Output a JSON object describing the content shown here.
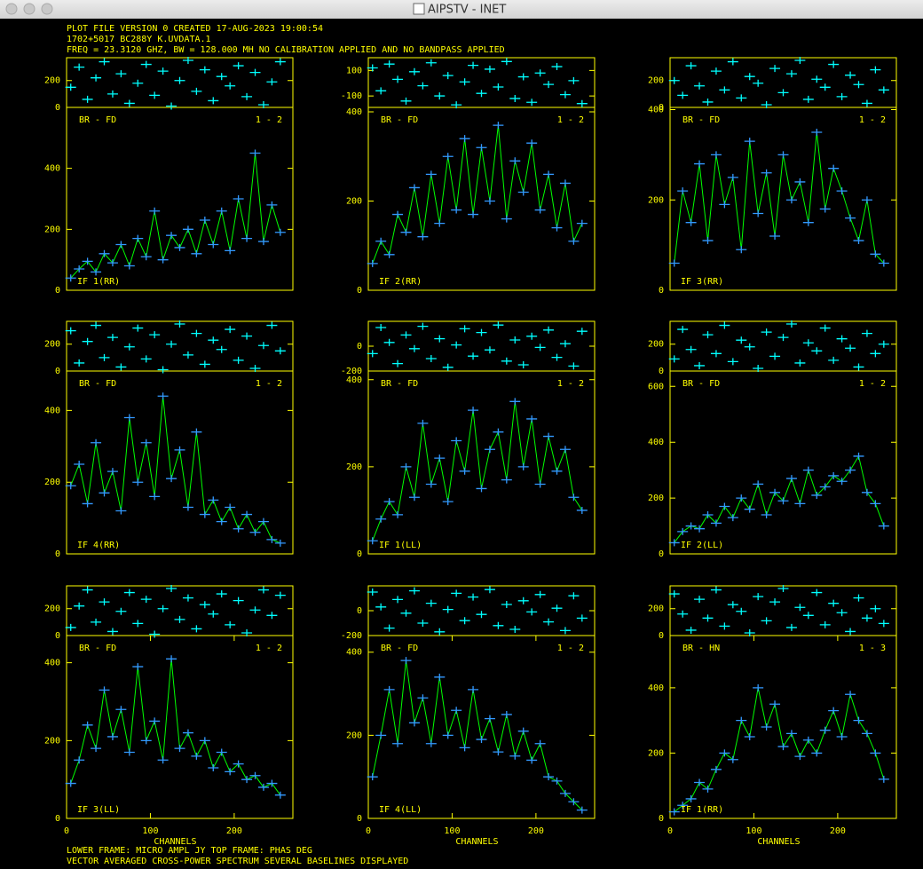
{
  "window": {
    "title": "AIPSTV - INET"
  },
  "header": [
    "PLOT FILE VERSION 0  CREATED 17-AUG-2023 19:00:54",
    "1702+5017   BC288Y K.UVDATA.1",
    "FREQ = 23.3120 GHZ, BW = 128.000 MH   NO CALIBRATION APPLIED AND NO BANDPASS APPLIED"
  ],
  "footer": [
    "LOWER FRAME: MICRO AMPL JY   TOP FRAME: PHAS DEG",
    "VECTOR AVERAGED CROSS-POWER SPECTRUM    SEVERAL BASELINES DISPLAYED"
  ],
  "chart_data": [
    {
      "type": "line",
      "annotations": [
        "BR - FD",
        "1 - 2",
        "IF 1(RR)"
      ],
      "x": [
        5,
        15,
        25,
        35,
        45,
        55,
        65,
        75,
        85,
        95,
        105,
        115,
        125,
        135,
        145,
        155,
        165,
        175,
        185,
        195,
        205,
        215,
        225,
        235,
        245,
        255
      ],
      "xlim": [
        0,
        270
      ],
      "phase": {
        "color": "#00ffff",
        "ylim": [
          0,
          370
        ],
        "yticks": [
          0,
          200
        ],
        "values": [
          150,
          300,
          60,
          220,
          340,
          100,
          250,
          30,
          180,
          320,
          90,
          270,
          10,
          200,
          350,
          120,
          280,
          50,
          230,
          160,
          310,
          80,
          260,
          20,
          190,
          340
        ]
      },
      "amplitude": {
        "color": "#00ff00",
        "marker_color": "#3399ff",
        "ylim": [
          0,
          600
        ],
        "yticks": [
          0,
          200,
          400
        ],
        "values": [
          40,
          70,
          95,
          60,
          120,
          90,
          150,
          80,
          170,
          110,
          260,
          100,
          180,
          140,
          200,
          120,
          230,
          150,
          260,
          130,
          300,
          170,
          450,
          160,
          280,
          190
        ]
      }
    },
    {
      "type": "line",
      "annotations": [
        "BR - FD",
        "1 - 2",
        "IF 2(RR)"
      ],
      "x": [
        5,
        15,
        25,
        35,
        45,
        55,
        65,
        75,
        85,
        95,
        105,
        115,
        125,
        135,
        145,
        155,
        165,
        175,
        185,
        195,
        205,
        215,
        225,
        235,
        245,
        255
      ],
      "xlim": [
        0,
        270
      ],
      "phase": {
        "color": "#00ffff",
        "ylim": [
          -190,
          200
        ],
        "yticks": [
          -100,
          100
        ],
        "values": [
          120,
          -60,
          150,
          30,
          -140,
          90,
          -20,
          160,
          -100,
          60,
          -170,
          10,
          140,
          -80,
          110,
          -30,
          170,
          -120,
          50,
          -150,
          80,
          -10,
          130,
          -90,
          20,
          -160
        ]
      },
      "amplitude": {
        "color": "#00ff00",
        "marker_color": "#3399ff",
        "ylim": [
          0,
          410
        ],
        "yticks": [
          0,
          200,
          400
        ],
        "values": [
          60,
          110,
          80,
          170,
          130,
          230,
          120,
          260,
          150,
          300,
          180,
          340,
          170,
          320,
          200,
          370,
          160,
          290,
          220,
          330,
          180,
          260,
          140,
          240,
          110,
          150
        ]
      }
    },
    {
      "type": "line",
      "annotations": [
        "BR - FD",
        "1 - 2",
        "IF 3(RR)"
      ],
      "x": [
        5,
        15,
        25,
        35,
        45,
        55,
        65,
        75,
        85,
        95,
        105,
        115,
        125,
        135,
        145,
        155,
        165,
        175,
        185,
        195,
        205,
        215,
        225,
        235,
        245,
        255
      ],
      "xlim": [
        0,
        270
      ],
      "phase": {
        "color": "#00ffff",
        "ylim": [
          0,
          370
        ],
        "yticks": [
          0,
          200
        ],
        "values": [
          200,
          90,
          310,
          160,
          40,
          270,
          130,
          340,
          70,
          230,
          180,
          20,
          290,
          110,
          250,
          350,
          60,
          210,
          150,
          320,
          80,
          240,
          170,
          30,
          280,
          130
        ]
      },
      "amplitude": {
        "color": "#00ff00",
        "marker_color": "#3399ff",
        "ylim": [
          0,
          405
        ],
        "yticks": [
          0,
          200,
          400
        ],
        "values": [
          60,
          220,
          150,
          280,
          110,
          300,
          190,
          250,
          90,
          330,
          170,
          260,
          120,
          300,
          200,
          240,
          150,
          350,
          180,
          270,
          220,
          160,
          110,
          200,
          80,
          60
        ]
      }
    },
    {
      "type": "line",
      "annotations": [
        "BR - FD",
        "1 - 2",
        "IF 4(RR)"
      ],
      "x": [
        5,
        15,
        25,
        35,
        45,
        55,
        65,
        75,
        85,
        95,
        105,
        115,
        125,
        135,
        145,
        155,
        165,
        175,
        185,
        195,
        205,
        215,
        225,
        235,
        245,
        255
      ],
      "xlim": [
        0,
        270
      ],
      "phase": {
        "color": "#00ffff",
        "ylim": [
          0,
          370
        ],
        "yticks": [
          0,
          200
        ],
        "values": [
          300,
          60,
          220,
          340,
          100,
          250,
          30,
          180,
          320,
          90,
          270,
          10,
          200,
          350,
          120,
          280,
          50,
          230,
          160,
          310,
          80,
          260,
          20,
          190,
          340,
          150
        ]
      },
      "amplitude": {
        "color": "#00ff00",
        "marker_color": "#3399ff",
        "ylim": [
          0,
          510
        ],
        "yticks": [
          0,
          200,
          400
        ],
        "values": [
          190,
          250,
          140,
          310,
          170,
          230,
          120,
          380,
          200,
          310,
          160,
          440,
          210,
          290,
          130,
          340,
          110,
          150,
          90,
          130,
          70,
          110,
          60,
          90,
          40,
          30
        ]
      }
    },
    {
      "type": "line",
      "annotations": [
        "BR - FD",
        "1 - 2",
        "IF 1(LL)"
      ],
      "x": [
        5,
        15,
        25,
        35,
        45,
        55,
        65,
        75,
        85,
        95,
        105,
        115,
        125,
        135,
        145,
        155,
        165,
        175,
        185,
        195,
        205,
        215,
        225,
        235,
        245,
        255
      ],
      "xlim": [
        0,
        270
      ],
      "phase": {
        "color": "#00ffff",
        "ylim": [
          -200,
          200
        ],
        "yticks": [
          -200,
          0
        ],
        "values": [
          -60,
          150,
          30,
          -140,
          90,
          -20,
          160,
          -100,
          60,
          -170,
          10,
          140,
          -80,
          110,
          -30,
          170,
          -120,
          50,
          -150,
          80,
          -10,
          130,
          -90,
          20,
          -160,
          120
        ]
      },
      "amplitude": {
        "color": "#00ff00",
        "marker_color": "#3399ff",
        "ylim": [
          0,
          420
        ],
        "yticks": [
          0,
          200,
          400
        ],
        "values": [
          30,
          80,
          120,
          90,
          200,
          130,
          300,
          160,
          220,
          120,
          260,
          190,
          330,
          150,
          240,
          280,
          170,
          350,
          200,
          310,
          160,
          270,
          190,
          240,
          130,
          100
        ]
      }
    },
    {
      "type": "line",
      "annotations": [
        "BR - FD",
        "1 - 2",
        "IF 2(LL)"
      ],
      "x": [
        5,
        15,
        25,
        35,
        45,
        55,
        65,
        75,
        85,
        95,
        105,
        115,
        125,
        135,
        145,
        155,
        165,
        175,
        185,
        195,
        205,
        215,
        225,
        235,
        245,
        255
      ],
      "xlim": [
        0,
        270
      ],
      "phase": {
        "color": "#00ffff",
        "ylim": [
          0,
          370
        ],
        "yticks": [
          0,
          200
        ],
        "values": [
          90,
          310,
          160,
          40,
          270,
          130,
          340,
          70,
          230,
          180,
          20,
          290,
          110,
          250,
          350,
          60,
          210,
          150,
          320,
          80,
          240,
          170,
          30,
          280,
          130,
          200
        ]
      },
      "amplitude": {
        "color": "#00ff00",
        "marker_color": "#3399ff",
        "ylim": [
          0,
          655
        ],
        "yticks": [
          0,
          200,
          400,
          600
        ],
        "values": [
          40,
          80,
          100,
          90,
          140,
          110,
          170,
          130,
          200,
          160,
          250,
          140,
          220,
          190,
          270,
          180,
          300,
          210,
          240,
          280,
          260,
          300,
          350,
          220,
          180,
          100
        ]
      }
    },
    {
      "type": "line",
      "annotations": [
        "BR - FD",
        "1 - 2",
        "IF 3(LL)"
      ],
      "xlabel": "CHANNELS",
      "x": [
        5,
        15,
        25,
        35,
        45,
        55,
        65,
        75,
        85,
        95,
        105,
        115,
        125,
        135,
        145,
        155,
        165,
        175,
        185,
        195,
        205,
        215,
        225,
        235,
        245,
        255
      ],
      "xlim": [
        0,
        270
      ],
      "xticks": [
        0,
        100,
        200
      ],
      "phase": {
        "color": "#00ffff",
        "ylim": [
          0,
          370
        ],
        "yticks": [
          0,
          200
        ],
        "values": [
          60,
          220,
          340,
          100,
          250,
          30,
          180,
          320,
          90,
          270,
          10,
          200,
          350,
          120,
          280,
          50,
          230,
          160,
          310,
          80,
          260,
          20,
          190,
          340,
          150,
          300
        ]
      },
      "amplitude": {
        "color": "#00ff00",
        "marker_color": "#3399ff",
        "ylim": [
          0,
          470
        ],
        "yticks": [
          0,
          200,
          400
        ],
        "values": [
          90,
          150,
          240,
          180,
          330,
          210,
          280,
          170,
          390,
          200,
          250,
          150,
          410,
          180,
          220,
          160,
          200,
          130,
          170,
          120,
          140,
          100,
          110,
          80,
          90,
          60
        ]
      }
    },
    {
      "type": "line",
      "annotations": [
        "BR - FD",
        "1 - 2",
        "IF 4(LL)"
      ],
      "xlabel": "CHANNELS",
      "x": [
        5,
        15,
        25,
        35,
        45,
        55,
        65,
        75,
        85,
        95,
        105,
        115,
        125,
        135,
        145,
        155,
        165,
        175,
        185,
        195,
        205,
        215,
        225,
        235,
        245,
        255
      ],
      "xlim": [
        0,
        270
      ],
      "xticks": [
        0,
        100,
        200
      ],
      "phase": {
        "color": "#00ffff",
        "ylim": [
          -200,
          200
        ],
        "yticks": [
          -200,
          0
        ],
        "values": [
          150,
          30,
          -140,
          90,
          -20,
          160,
          -100,
          60,
          -170,
          10,
          140,
          -80,
          110,
          -30,
          170,
          -120,
          50,
          -150,
          80,
          -10,
          130,
          -90,
          20,
          -160,
          120,
          -60
        ]
      },
      "amplitude": {
        "color": "#00ff00",
        "marker_color": "#3399ff",
        "ylim": [
          0,
          440
        ],
        "yticks": [
          0,
          200,
          400
        ],
        "values": [
          100,
          200,
          310,
          180,
          380,
          230,
          290,
          180,
          340,
          200,
          260,
          170,
          310,
          190,
          240,
          160,
          250,
          150,
          210,
          140,
          180,
          100,
          90,
          60,
          40,
          20
        ]
      }
    },
    {
      "type": "line",
      "annotations": [
        "BR - HN",
        "1 - 3",
        "IF 1(RR)"
      ],
      "xlabel": "CHANNELS",
      "x": [
        5,
        15,
        25,
        35,
        45,
        55,
        65,
        75,
        85,
        95,
        105,
        115,
        125,
        135,
        145,
        155,
        165,
        175,
        185,
        195,
        205,
        215,
        225,
        235,
        245,
        255
      ],
      "xlim": [
        0,
        270
      ],
      "xticks": [
        0,
        100,
        200
      ],
      "phase": {
        "color": "#00ffff",
        "ylim": [
          0,
          370
        ],
        "yticks": [
          0,
          200
        ],
        "values": [
          310,
          160,
          40,
          270,
          130,
          340,
          70,
          230,
          180,
          20,
          290,
          110,
          250,
          350,
          60,
          210,
          150,
          320,
          80,
          240,
          170,
          30,
          280,
          130,
          200,
          90
        ]
      },
      "amplitude": {
        "color": "#00ff00",
        "marker_color": "#3399ff",
        "ylim": [
          0,
          560
        ],
        "yticks": [
          0,
          200,
          400
        ],
        "values": [
          20,
          40,
          60,
          110,
          90,
          150,
          200,
          180,
          300,
          250,
          400,
          280,
          350,
          220,
          260,
          190,
          240,
          200,
          270,
          330,
          250,
          380,
          300,
          260,
          200,
          120
        ]
      }
    }
  ]
}
